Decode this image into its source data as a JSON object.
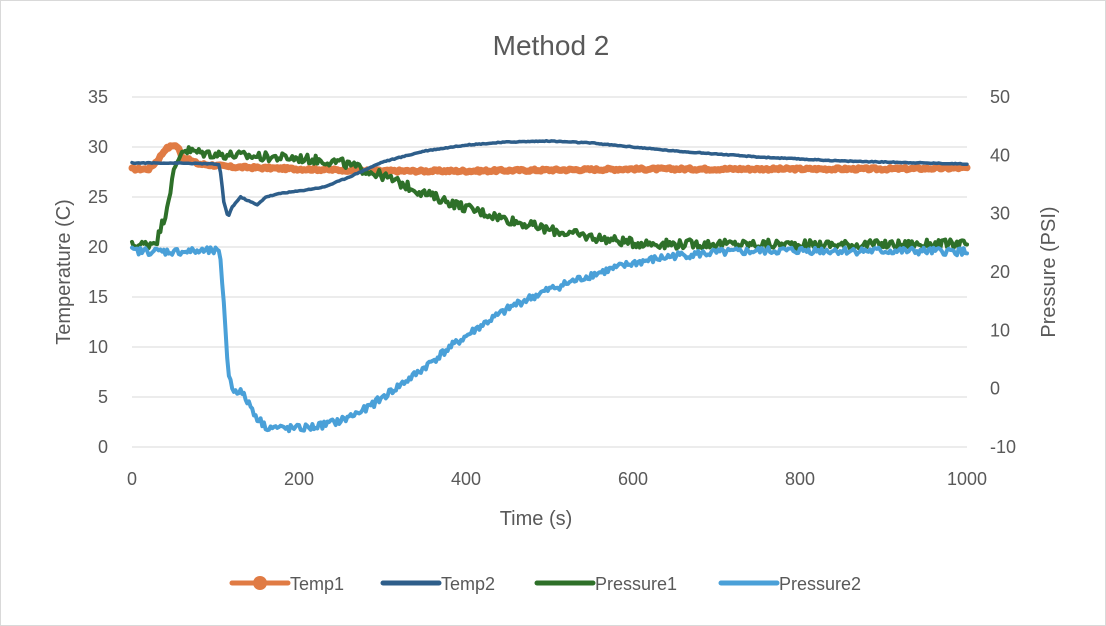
{
  "chart_data": {
    "type": "line",
    "title": "Method 2",
    "xlabel": "Time (s)",
    "ylabel": "Temperature (C)",
    "y2label": "Pressure (PSI)",
    "xlim": [
      0,
      1000
    ],
    "ylim": [
      0,
      35
    ],
    "y2lim": [
      -10,
      50
    ],
    "xticks": [
      "0",
      "200",
      "400",
      "600",
      "800",
      "1000"
    ],
    "yticks": [
      "0",
      "5",
      "10",
      "15",
      "20",
      "25",
      "30",
      "35"
    ],
    "y2ticks": [
      "-10",
      "0",
      "10",
      "20",
      "30",
      "40",
      "50"
    ],
    "grid": true,
    "legend_position": "bottom",
    "series": [
      {
        "name": "Temp1",
        "axis": "left",
        "color": "#e07b44",
        "marker": "circle",
        "points": [
          [
            0,
            27.8
          ],
          [
            20,
            27.8
          ],
          [
            30,
            28.6
          ],
          [
            40,
            29.8
          ],
          [
            50,
            30.2
          ],
          [
            55,
            30.0
          ],
          [
            60,
            29.0
          ],
          [
            80,
            28.3
          ],
          [
            120,
            28.0
          ],
          [
            200,
            27.8
          ],
          [
            300,
            27.6
          ],
          [
            400,
            27.6
          ],
          [
            500,
            27.7
          ],
          [
            600,
            27.8
          ],
          [
            700,
            27.8
          ],
          [
            800,
            27.8
          ],
          [
            900,
            27.8
          ],
          [
            1000,
            27.9
          ]
        ]
      },
      {
        "name": "Temp2",
        "axis": "left",
        "color": "#2e5e8a",
        "marker": "none",
        "points": [
          [
            0,
            28.4
          ],
          [
            50,
            28.4
          ],
          [
            100,
            28.3
          ],
          [
            105,
            28.2
          ],
          [
            110,
            24.5
          ],
          [
            115,
            23.0
          ],
          [
            120,
            24.0
          ],
          [
            130,
            25.0
          ],
          [
            140,
            24.6
          ],
          [
            150,
            24.2
          ],
          [
            160,
            25.0
          ],
          [
            180,
            25.4
          ],
          [
            200,
            25.6
          ],
          [
            230,
            26.0
          ],
          [
            260,
            27.0
          ],
          [
            300,
            28.5
          ],
          [
            350,
            29.6
          ],
          [
            400,
            30.2
          ],
          [
            450,
            30.5
          ],
          [
            500,
            30.6
          ],
          [
            550,
            30.4
          ],
          [
            600,
            30.0
          ],
          [
            650,
            29.6
          ],
          [
            700,
            29.3
          ],
          [
            750,
            29.0
          ],
          [
            800,
            28.8
          ],
          [
            850,
            28.6
          ],
          [
            900,
            28.5
          ],
          [
            950,
            28.4
          ],
          [
            1000,
            28.3
          ]
        ]
      },
      {
        "name": "Pressure1",
        "axis": "right",
        "color": "#2e7029",
        "marker": "none",
        "points": [
          [
            0,
            24.5
          ],
          [
            20,
            24.8
          ],
          [
            30,
            25.5
          ],
          [
            40,
            30
          ],
          [
            50,
            37
          ],
          [
            60,
            41
          ],
          [
            80,
            40.5
          ],
          [
            100,
            40.2
          ],
          [
            150,
            39.8
          ],
          [
            200,
            39.5
          ],
          [
            250,
            38.8
          ],
          [
            300,
            36.5
          ],
          [
            350,
            33.5
          ],
          [
            400,
            31
          ],
          [
            450,
            29
          ],
          [
            500,
            27.2
          ],
          [
            550,
            26
          ],
          [
            600,
            25
          ],
          [
            650,
            24.8
          ],
          [
            700,
            24.8
          ],
          [
            800,
            24.7
          ],
          [
            900,
            24.7
          ],
          [
            1000,
            24.8
          ]
        ]
      },
      {
        "name": "Pressure2",
        "axis": "right",
        "color": "#4aa0d8",
        "marker": "none",
        "points": [
          [
            0,
            23.6
          ],
          [
            50,
            23.5
          ],
          [
            100,
            23.6
          ],
          [
            105,
            23.2
          ],
          [
            110,
            15
          ],
          [
            115,
            3
          ],
          [
            120,
            0
          ],
          [
            130,
            -0.5
          ],
          [
            140,
            -2.5
          ],
          [
            150,
            -5
          ],
          [
            160,
            -6.5
          ],
          [
            180,
            -6.8
          ],
          [
            200,
            -6.8
          ],
          [
            220,
            -6.5
          ],
          [
            250,
            -5.5
          ],
          [
            280,
            -3.5
          ],
          [
            300,
            -1.5
          ],
          [
            340,
            2.5
          ],
          [
            380,
            7
          ],
          [
            420,
            11
          ],
          [
            460,
            14.5
          ],
          [
            500,
            17
          ],
          [
            550,
            19.5
          ],
          [
            600,
            21.5
          ],
          [
            650,
            22.8
          ],
          [
            700,
            23.3
          ],
          [
            750,
            23.6
          ],
          [
            800,
            23.7
          ],
          [
            900,
            23.6
          ],
          [
            1000,
            23.5
          ]
        ]
      }
    ]
  }
}
